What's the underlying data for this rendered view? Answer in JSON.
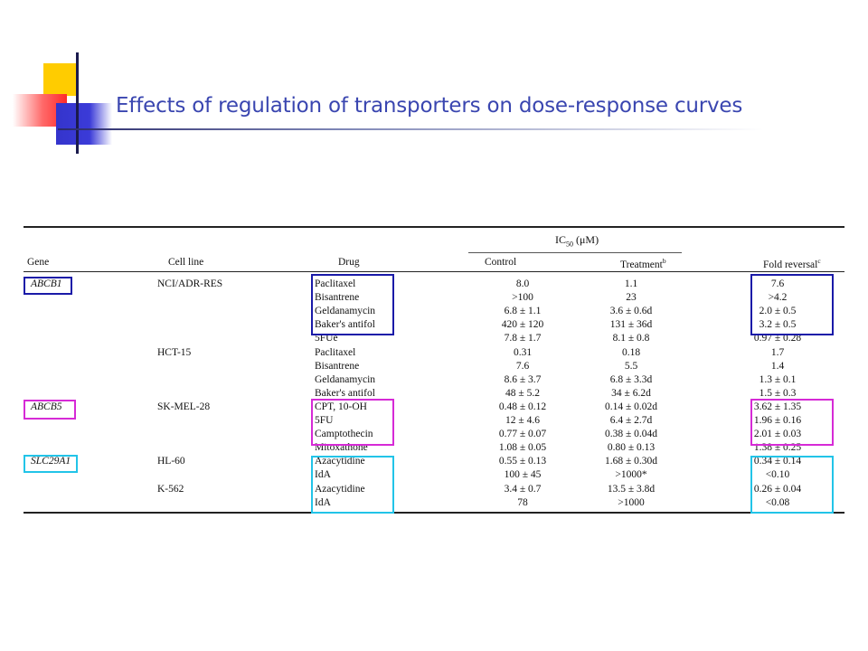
{
  "slide": {
    "title": "Effects of regulation of transporters on dose-response curves"
  },
  "table": {
    "headers": {
      "gene": "Gene",
      "cell_line": "Cell line",
      "drug": "Drug",
      "ic50_group": "IC",
      "ic50_sub": "50",
      "ic50_unit": " (μM)",
      "control": "Control",
      "treatment": "Treatment",
      "treatment_sup": "b",
      "fold": "Fold reversal",
      "fold_sup": "c"
    },
    "rows": [
      {
        "gene": "ABCB1",
        "cell_line": "NCI/ADR-RES",
        "drug": "Paclitaxel",
        "control": "8.0",
        "treatment": "1.1",
        "fold": "7.6"
      },
      {
        "gene": "",
        "cell_line": "",
        "drug": "Bisantrene",
        "control": ">100",
        "treatment": "23",
        "fold": ">4.2"
      },
      {
        "gene": "",
        "cell_line": "",
        "drug": "Geldanamycin",
        "control": "6.8 ± 1.1",
        "treatment": "3.6 ± 0.6d",
        "fold": "2.0 ± 0.5"
      },
      {
        "gene": "",
        "cell_line": "",
        "drug": "Baker's antifol",
        "control": "420 ± 120",
        "treatment": "131 ± 36d",
        "fold": "3.2 ± 0.5"
      },
      {
        "gene": "",
        "cell_line": "",
        "drug": "5FUe",
        "control": "7.8 ± 1.7",
        "treatment": "8.1 ± 0.8",
        "fold": "0.97 ± 0.28"
      },
      {
        "gene": "",
        "cell_line": "HCT-15",
        "drug": "Paclitaxel",
        "control": "0.31",
        "treatment": "0.18",
        "fold": "1.7"
      },
      {
        "gene": "",
        "cell_line": "",
        "drug": "Bisantrene",
        "control": "7.6",
        "treatment": "5.5",
        "fold": "1.4"
      },
      {
        "gene": "",
        "cell_line": "",
        "drug": "Geldanamycin",
        "control": "8.6 ± 3.7",
        "treatment": "6.8 ± 3.3d",
        "fold": "1.3 ± 0.1"
      },
      {
        "gene": "",
        "cell_line": "",
        "drug": "Baker's antifol",
        "control": "48 ± 5.2",
        "treatment": "34 ± 6.2d",
        "fold": "1.5 ± 0.3"
      },
      {
        "gene": "ABCB5",
        "cell_line": "SK-MEL-28",
        "drug": "CPT, 10-OH",
        "control": "0.48 ± 0.12",
        "treatment": "0.14 ± 0.02d",
        "fold": "3.62 ± 1.35"
      },
      {
        "gene": "",
        "cell_line": "",
        "drug": "5FU",
        "control": "12 ± 4.6",
        "treatment": "6.4 ± 2.7d",
        "fold": "1.96 ± 0.16"
      },
      {
        "gene": "",
        "cell_line": "",
        "drug": "Camptothecin",
        "control": "0.77 ± 0.07",
        "treatment": "0.38 ± 0.04d",
        "fold": "2.01 ± 0.03"
      },
      {
        "gene": "",
        "cell_line": "",
        "drug": "Mitoxathone",
        "control": "1.08 ± 0.05",
        "treatment": "0.80 ± 0.13",
        "fold": "1.38 ± 0.25"
      },
      {
        "gene": "SLC29A1",
        "cell_line": "HL-60",
        "drug": "Azacytidine",
        "control": "0.55 ± 0.13",
        "treatment": "1.68 ± 0.30d",
        "fold": "0.34 ± 0.14"
      },
      {
        "gene": "",
        "cell_line": "",
        "drug": "IdA",
        "control": "100 ± 45",
        "treatment": ">1000*",
        "fold": "<0.10"
      },
      {
        "gene": "",
        "cell_line": "K-562",
        "drug": "Azacytidine",
        "control": "3.4 ± 0.7",
        "treatment": "13.5 ± 3.8d",
        "fold": "0.26 ± 0.04"
      },
      {
        "gene": "",
        "cell_line": "",
        "drug": "IdA",
        "control": "78",
        "treatment": ">1000",
        "fold": "<0.08"
      }
    ]
  },
  "colors": {
    "title": "#3a46b0",
    "box_abcb1": "#1a1aa8",
    "box_abcb5": "#d62ad6",
    "box_slc29a1": "#22c4e8"
  }
}
